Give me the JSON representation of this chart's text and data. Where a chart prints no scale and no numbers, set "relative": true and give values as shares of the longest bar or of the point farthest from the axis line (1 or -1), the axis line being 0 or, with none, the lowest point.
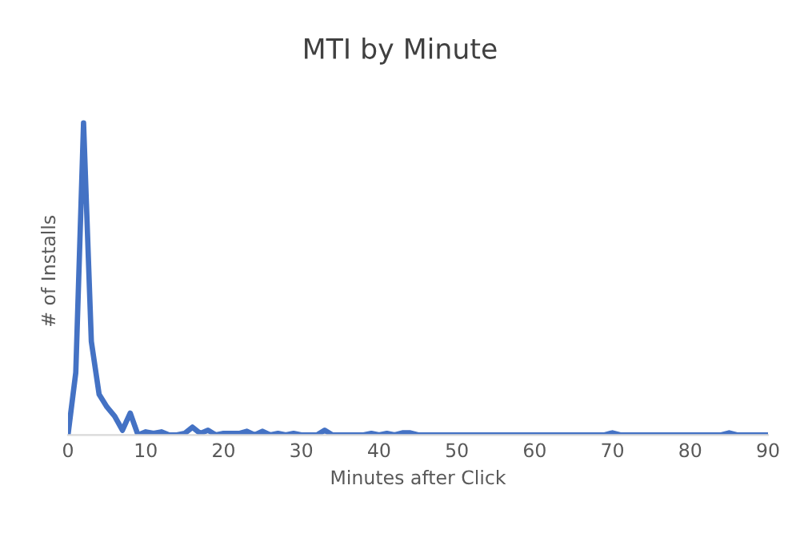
{
  "chart_data": {
    "type": "line",
    "title": "MTI by Minute",
    "xlabel": "Minutes after Click",
    "ylabel": "# of Installs",
    "relative": true,
    "x": [
      0,
      1,
      2,
      3,
      4,
      5,
      6,
      7,
      8,
      9,
      10,
      11,
      12,
      13,
      14,
      15,
      16,
      17,
      18,
      19,
      20,
      21,
      22,
      23,
      24,
      25,
      26,
      27,
      28,
      29,
      30,
      31,
      32,
      33,
      34,
      38,
      39,
      40,
      41,
      42,
      43,
      44,
      45,
      69,
      70,
      71,
      84,
      85,
      86,
      90
    ],
    "series": [
      {
        "color": "#4472c4",
        "values": [
          0,
          0.2,
          1,
          0.3,
          0.13,
          0.09,
          0.06,
          0.015,
          0.07,
          0,
          0.01,
          0.005,
          0.01,
          0,
          0,
          0.005,
          0.025,
          0.005,
          0.015,
          0,
          0.005,
          0.005,
          0.005,
          0.012,
          0,
          0.012,
          0,
          0.005,
          0,
          0.005,
          0,
          0,
          0,
          0.015,
          0,
          0,
          0.005,
          0,
          0.005,
          0,
          0.007,
          0.007,
          0,
          0,
          0.007,
          0,
          0,
          0.007,
          0,
          0
        ]
      }
    ],
    "xlim": [
      0,
      90
    ],
    "xticks": [
      0,
      10,
      20,
      30,
      40,
      50,
      60,
      70,
      80,
      90
    ],
    "tick_labels": "x",
    "grid": false,
    "legend": false
  }
}
